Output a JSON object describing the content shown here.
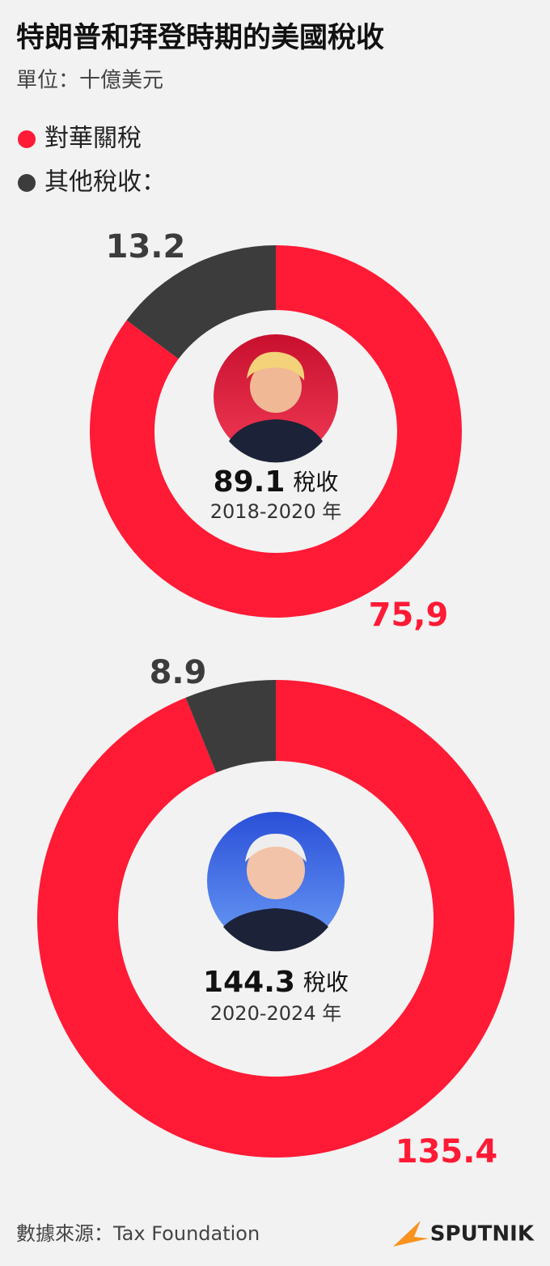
{
  "header": {
    "title": "特朗普和拜登時期的美國稅收",
    "subtitle": "單位：十億美元"
  },
  "legend": [
    {
      "name": "對華關稅",
      "color": "#ff1a35"
    },
    {
      "name": "其他稅收：",
      "color": "#3c3c3c"
    }
  ],
  "chart_data": [
    {
      "type": "donut",
      "values": [
        75.9,
        13.2
      ],
      "value_labels": [
        "75,9",
        "13.2"
      ],
      "total": 89.1,
      "total_unit": "稅收",
      "period": "2018-2020 年"
    },
    {
      "type": "donut",
      "values": [
        135.4,
        8.9
      ],
      "value_labels": [
        "135.4",
        "8.9"
      ],
      "total": 144.3,
      "total_unit": "稅收",
      "period": "2020-2024 年"
    }
  ],
  "footer": {
    "source": "數據來源：Tax Foundation",
    "logo": "SPUTNIK"
  }
}
